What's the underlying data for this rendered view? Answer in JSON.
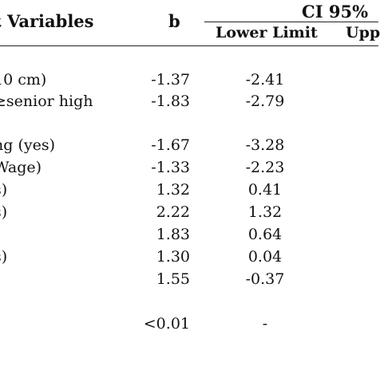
{
  "header": {
    "variables_label": "t Variables",
    "b_label": "b",
    "ci_label": "CI 95%",
    "lower_label": "Lower Limit",
    "upper_label": "Upp"
  },
  "rows": [
    {
      "label": "10 cm)",
      "b": "-1.37",
      "lower": "-2.41"
    },
    {
      "label": "≥senior high",
      "b": "-1.83",
      "lower": "-2.79"
    },
    {
      "label": "ng (yes)",
      "b": "-1.67",
      "lower": "-3.28"
    },
    {
      "label": "Wage)",
      "b": "-1.33",
      "lower": "-2.23"
    },
    {
      "label": "s)",
      "b": "1.32",
      "lower": "0.41"
    },
    {
      "label": "s)",
      "b": "2.22",
      "lower": "1.32"
    },
    {
      "label": "",
      "b": "1.83",
      "lower": "0.64"
    },
    {
      "label": "s)",
      "b": "1.30",
      "lower": "0.04"
    },
    {
      "label": "",
      "b": "1.55",
      "lower": "-0.37"
    },
    {
      "label": "",
      "b": "<0.01",
      "lower": "-"
    }
  ]
}
